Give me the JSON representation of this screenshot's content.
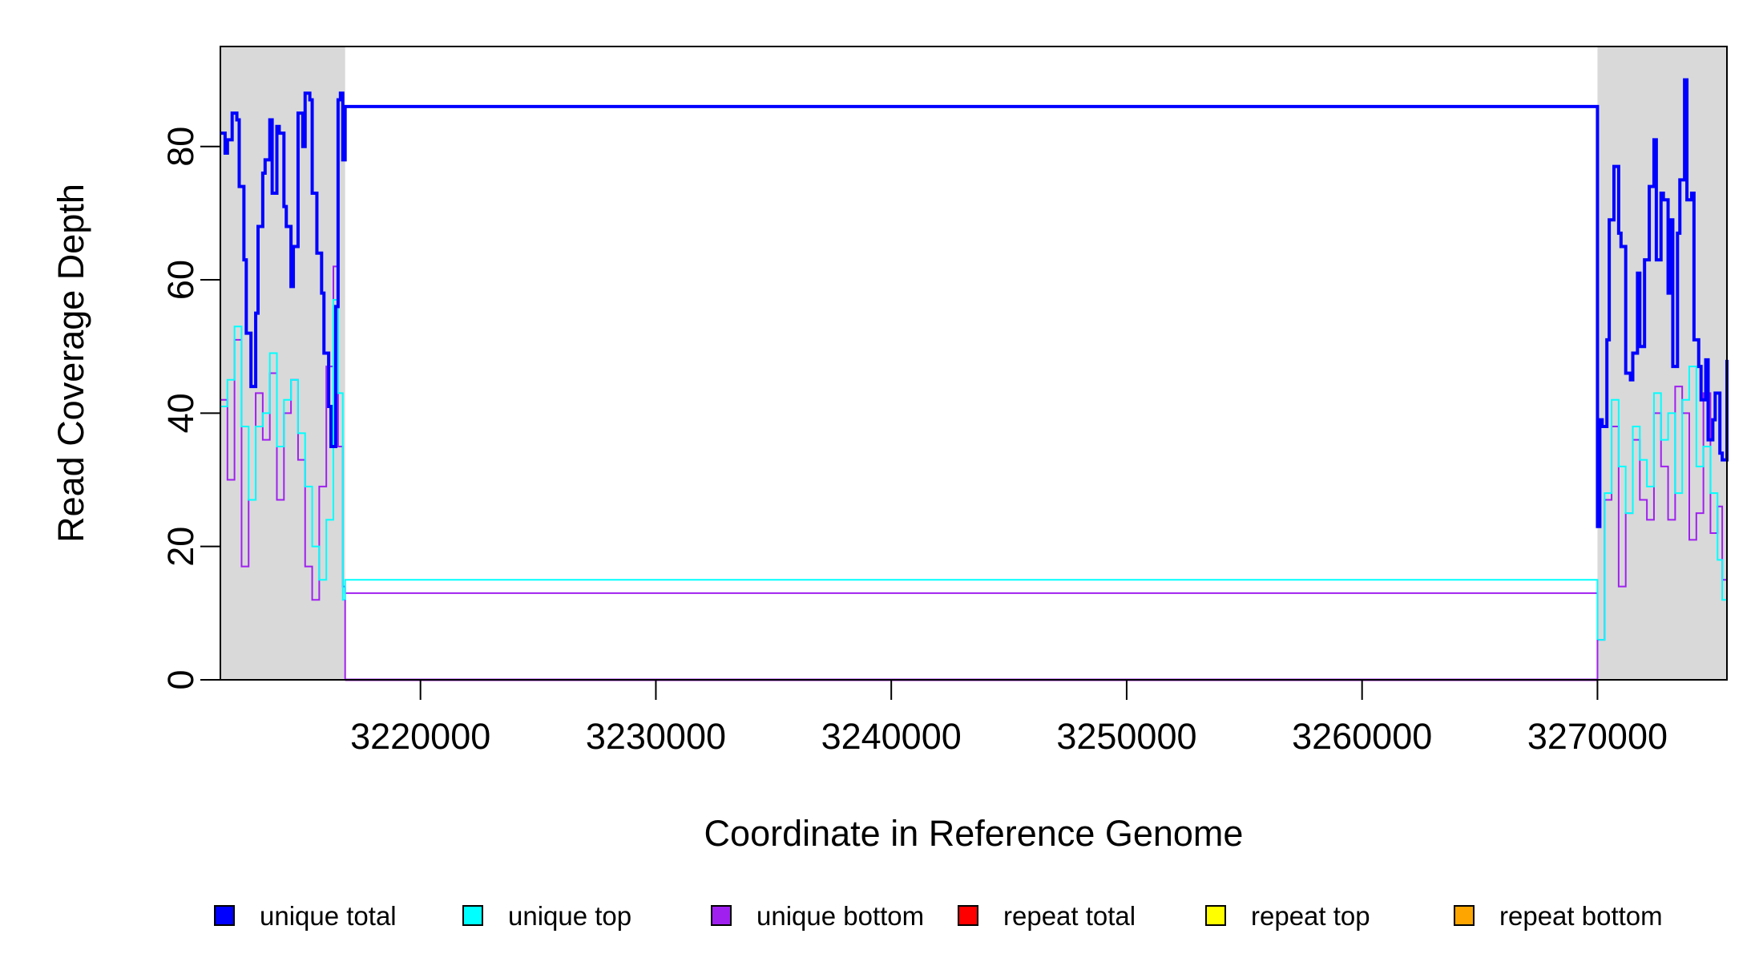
{
  "chart_data": {
    "type": "line",
    "title": "",
    "xlabel": "Coordinate in Reference Genome",
    "ylabel": "Read Coverage Depth",
    "xlim": [
      3211500,
      3275500
    ],
    "ylim": [
      0,
      95
    ],
    "x_ticks": [
      3220000,
      3230000,
      3240000,
      3250000,
      3260000,
      3270000
    ],
    "x_tick_labels": [
      "3220000",
      "3230000",
      "3240000",
      "3250000",
      "3260000",
      "3270000"
    ],
    "y_ticks": [
      0,
      20,
      40,
      60,
      80
    ],
    "y_tick_labels": [
      "0",
      "20",
      "40",
      "60",
      "80"
    ],
    "grid": false,
    "legend_position": "bottom",
    "shaded_regions": [
      {
        "x_start": 3211500,
        "x_end": 3216800,
        "color": "#d9d9d9"
      },
      {
        "x_start": 3270000,
        "x_end": 3275500,
        "color": "#d9d9d9"
      }
    ],
    "series": [
      {
        "name": "unique total",
        "color": "#0000ff",
        "width": 4,
        "x": [
          3211500,
          3211700,
          3211800,
          3212000,
          3212200,
          3212300,
          3212500,
          3212600,
          3212800,
          3213000,
          3213100,
          3213300,
          3213400,
          3213600,
          3213700,
          3213900,
          3214000,
          3214200,
          3214300,
          3214500,
          3214600,
          3214800,
          3215000,
          3215100,
          3215300,
          3215400,
          3215600,
          3215800,
          3215900,
          3216100,
          3216200,
          3216400,
          3216500,
          3216600,
          3216700,
          3216800,
          3270000,
          3270100,
          3270200,
          3270400,
          3270500,
          3270700,
          3270900,
          3271000,
          3271200,
          3271400,
          3271500,
          3271700,
          3271800,
          3272000,
          3272200,
          3272400,
          3272500,
          3272700,
          3272800,
          3273000,
          3273100,
          3273200,
          3273400,
          3273500,
          3273700,
          3273800,
          3274000,
          3274100,
          3274300,
          3274400,
          3274600,
          3274700,
          3274900,
          3275000,
          3275200,
          3275300,
          3275500
        ],
        "y": [
          82,
          79,
          81,
          85,
          84,
          74,
          63,
          52,
          44,
          55,
          68,
          76,
          78,
          84,
          73,
          83,
          82,
          71,
          68,
          59,
          65,
          85,
          80,
          88,
          87,
          73,
          64,
          58,
          49,
          41,
          35,
          56,
          87,
          88,
          78,
          86,
          23,
          39,
          38,
          51,
          69,
          77,
          67,
          65,
          46,
          45,
          49,
          61,
          50,
          63,
          74,
          81,
          63,
          73,
          72,
          58,
          69,
          47,
          67,
          75,
          90,
          72,
          73,
          51,
          47,
          42,
          48,
          36,
          39,
          43,
          34,
          33,
          48
        ]
      },
      {
        "name": "unique top",
        "color": "#00ffff",
        "width": 2,
        "x": [
          3211500,
          3211800,
          3212100,
          3212400,
          3212700,
          3213000,
          3213300,
          3213600,
          3213900,
          3214200,
          3214500,
          3214800,
          3215100,
          3215400,
          3215700,
          3216000,
          3216300,
          3216500,
          3216700,
          3216800,
          3270000,
          3270300,
          3270600,
          3270900,
          3271200,
          3271500,
          3271800,
          3272100,
          3272400,
          3272700,
          3273000,
          3273300,
          3273600,
          3273900,
          3274200,
          3274500,
          3274800,
          3275100,
          3275300,
          3275500
        ],
        "y": [
          41,
          45,
          53,
          38,
          27,
          38,
          40,
          49,
          35,
          42,
          45,
          37,
          29,
          20,
          15,
          24,
          57,
          43,
          12,
          15,
          6,
          28,
          42,
          32,
          25,
          38,
          33,
          29,
          43,
          36,
          40,
          28,
          42,
          47,
          32,
          35,
          28,
          18,
          12,
          27
        ]
      },
      {
        "name": "unique bottom",
        "color": "#a020f0",
        "width": 2,
        "x": [
          3211500,
          3211800,
          3212100,
          3212400,
          3212700,
          3213000,
          3213300,
          3213600,
          3213900,
          3214200,
          3214500,
          3214800,
          3215100,
          3215400,
          3215700,
          3216000,
          3216300,
          3216500,
          3216700,
          3216800,
          3270000,
          3270300,
          3270600,
          3270900,
          3271200,
          3271500,
          3271800,
          3272100,
          3272400,
          3272700,
          3273000,
          3273300,
          3273600,
          3273900,
          3274200,
          3274500,
          3274800,
          3275100,
          3275300,
          3275500
        ],
        "y": [
          42,
          30,
          51,
          17,
          27,
          43,
          36,
          46,
          27,
          40,
          45,
          33,
          17,
          12,
          29,
          47,
          62,
          35,
          14,
          13,
          6,
          27,
          38,
          14,
          25,
          36,
          27,
          24,
          40,
          32,
          24,
          44,
          40,
          21,
          25,
          43,
          22,
          26,
          15,
          21
        ]
      },
      {
        "name": "repeat total",
        "color": "#ff0000",
        "width": 2,
        "x": [
          3211500,
          3275500
        ],
        "y": [
          0,
          0
        ]
      },
      {
        "name": "repeat top",
        "color": "#ffff00",
        "width": 2,
        "x": [
          3211500,
          3275500
        ],
        "y": [
          0,
          0
        ]
      },
      {
        "name": "repeat bottom",
        "color": "#ffa500",
        "width": 2,
        "x": [
          3211500,
          3275500
        ],
        "y": [
          0,
          0
        ]
      }
    ]
  }
}
